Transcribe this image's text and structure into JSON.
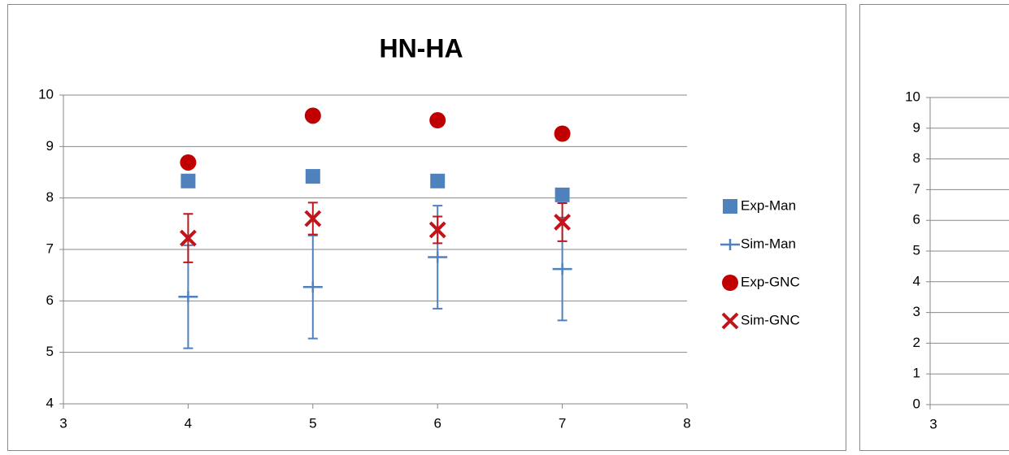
{
  "chart_data": [
    {
      "type": "scatter",
      "title": "HN-HA",
      "x": [
        4,
        5,
        6,
        7
      ],
      "xlim": [
        3,
        8
      ],
      "xticks": [
        3,
        4,
        5,
        6,
        7,
        8
      ],
      "ylim": [
        4,
        10
      ],
      "yticks": [
        4,
        5,
        6,
        7,
        8,
        9,
        10
      ],
      "grid": true,
      "legend": "right",
      "series": [
        {
          "name": "Exp-Man",
          "color": "#4f81bd",
          "marker": "square",
          "values": [
            8.33,
            8.42,
            8.33,
            8.06
          ]
        },
        {
          "name": "Sim-Man",
          "color": "#4f81bd",
          "marker": "plus",
          "values": [
            6.08,
            6.27,
            6.85,
            6.62
          ],
          "errors": [
            1,
            1,
            1,
            1
          ]
        },
        {
          "name": "Exp-GNC",
          "color": "#c00000",
          "marker": "circle",
          "values": [
            8.69,
            9.6,
            9.51,
            9.25
          ]
        },
        {
          "name": "Sim-GNC",
          "color": "#c0151b",
          "marker": "x",
          "values": [
            7.22,
            7.6,
            7.38,
            7.53
          ],
          "errors": [
            0.47,
            0.31,
            0.26,
            0.37
          ]
        }
      ]
    },
    {
      "type": "scatter",
      "xlim": [
        3,
        8
      ],
      "xticks": [
        3
      ],
      "ylim": [
        0,
        10
      ],
      "yticks": [
        0,
        1,
        2,
        3,
        4,
        5,
        6,
        7,
        8,
        9,
        10
      ],
      "grid": true,
      "series": []
    }
  ]
}
